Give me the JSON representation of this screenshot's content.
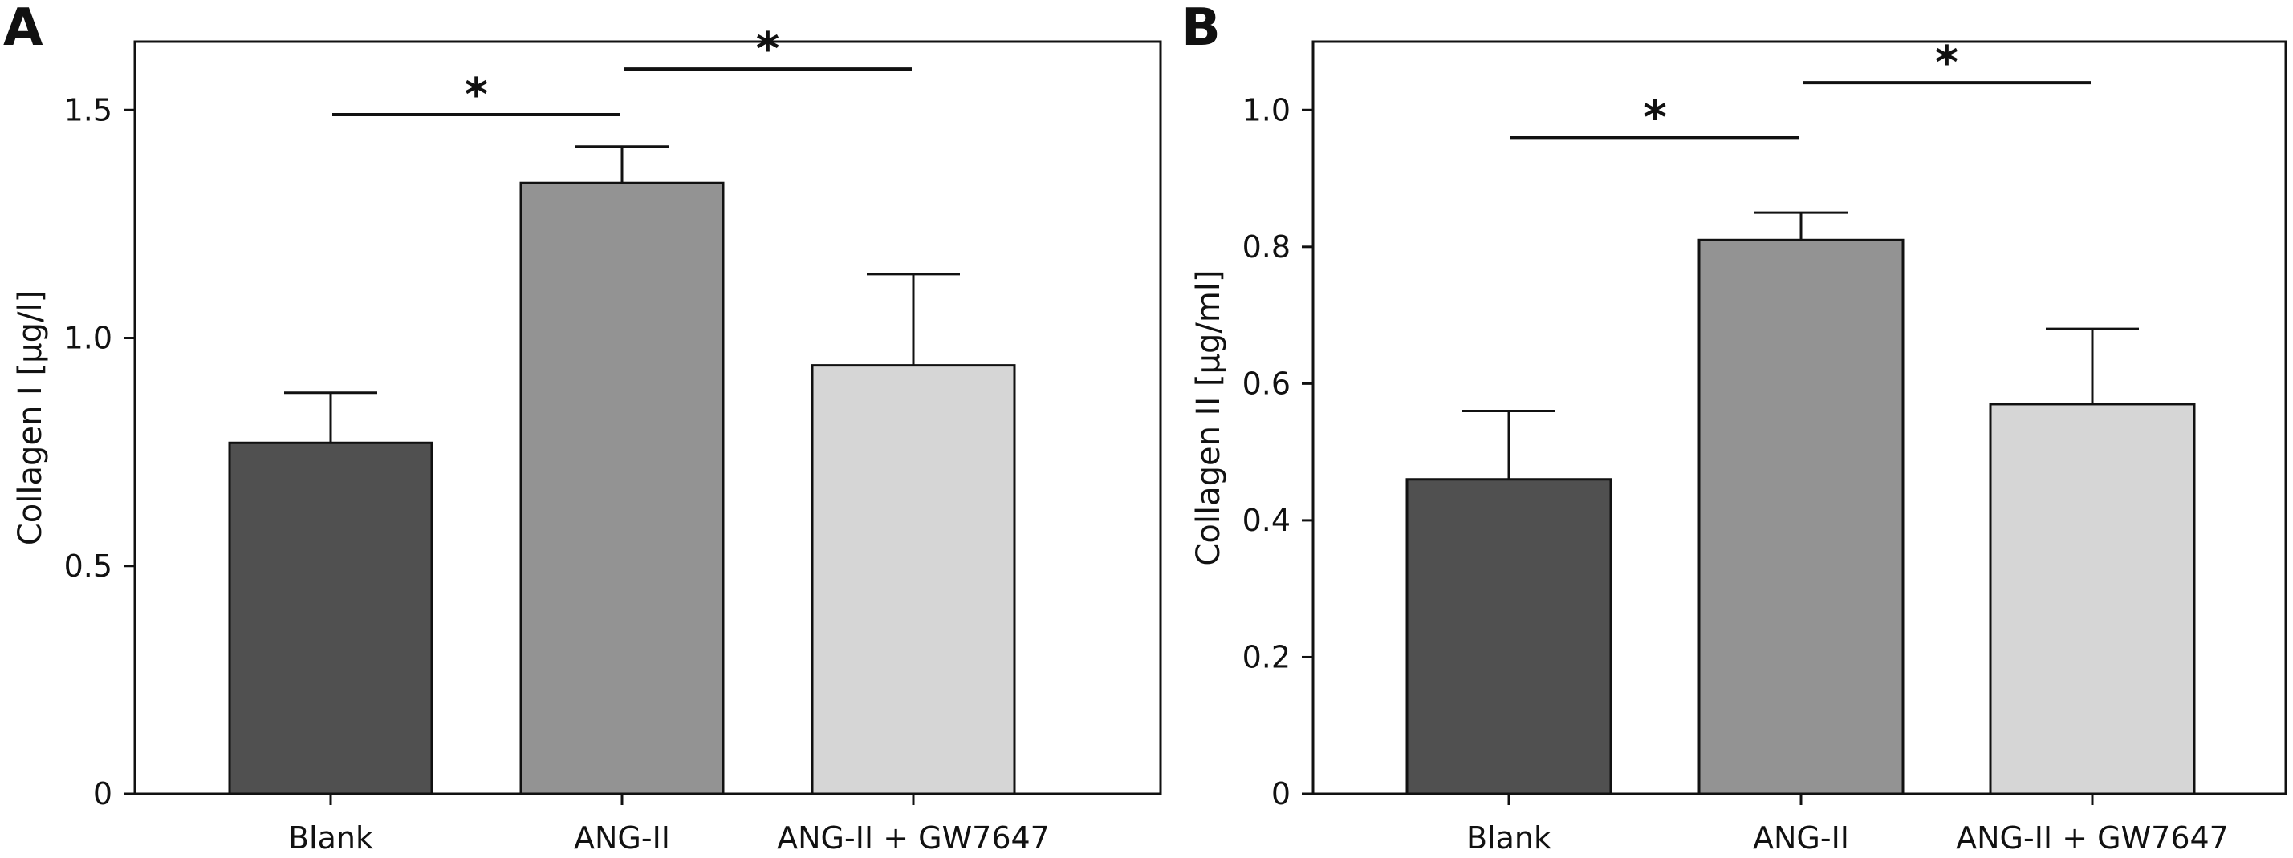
{
  "chart_data": [
    {
      "panel": "A",
      "type": "bar",
      "ylabel": "Collagen I [µg/l]",
      "xlabel": "",
      "ylim": [
        0,
        1.65
      ],
      "yticks": [
        0,
        0.5,
        1.0,
        1.5
      ],
      "ytick_labels": [
        "0",
        "0.5",
        "1.0",
        "1.5"
      ],
      "categories": [
        "Blank",
        "ANG-II",
        "ANG-II + GW7647"
      ],
      "values": [
        0.77,
        1.34,
        0.94
      ],
      "errors": [
        0.11,
        0.08,
        0.2
      ],
      "colors": [
        "#505050",
        "#939393",
        "#d6d6d6"
      ],
      "significance": [
        {
          "from": 0,
          "to": 1,
          "y": 1.49,
          "label": "*"
        },
        {
          "from": 1,
          "to": 2,
          "y": 1.59,
          "label": "*"
        }
      ]
    },
    {
      "panel": "B",
      "type": "bar",
      "ylabel": "Collagen II [µg/ml]",
      "xlabel": "",
      "ylim": [
        0,
        1.1
      ],
      "yticks": [
        0,
        0.2,
        0.4,
        0.6,
        0.8,
        1.0
      ],
      "ytick_labels": [
        "0",
        "0.2",
        "0.4",
        "0.6",
        "0.8",
        "1.0"
      ],
      "categories": [
        "Blank",
        "ANG-II",
        "ANG-II + GW7647"
      ],
      "values": [
        0.46,
        0.81,
        0.57
      ],
      "errors": [
        0.1,
        0.04,
        0.11
      ],
      "colors": [
        "#505050",
        "#939393",
        "#d6d6d6"
      ],
      "significance": [
        {
          "from": 0,
          "to": 1,
          "y": 0.96,
          "label": "*"
        },
        {
          "from": 1,
          "to": 2,
          "y": 1.04,
          "label": "*"
        }
      ]
    }
  ]
}
